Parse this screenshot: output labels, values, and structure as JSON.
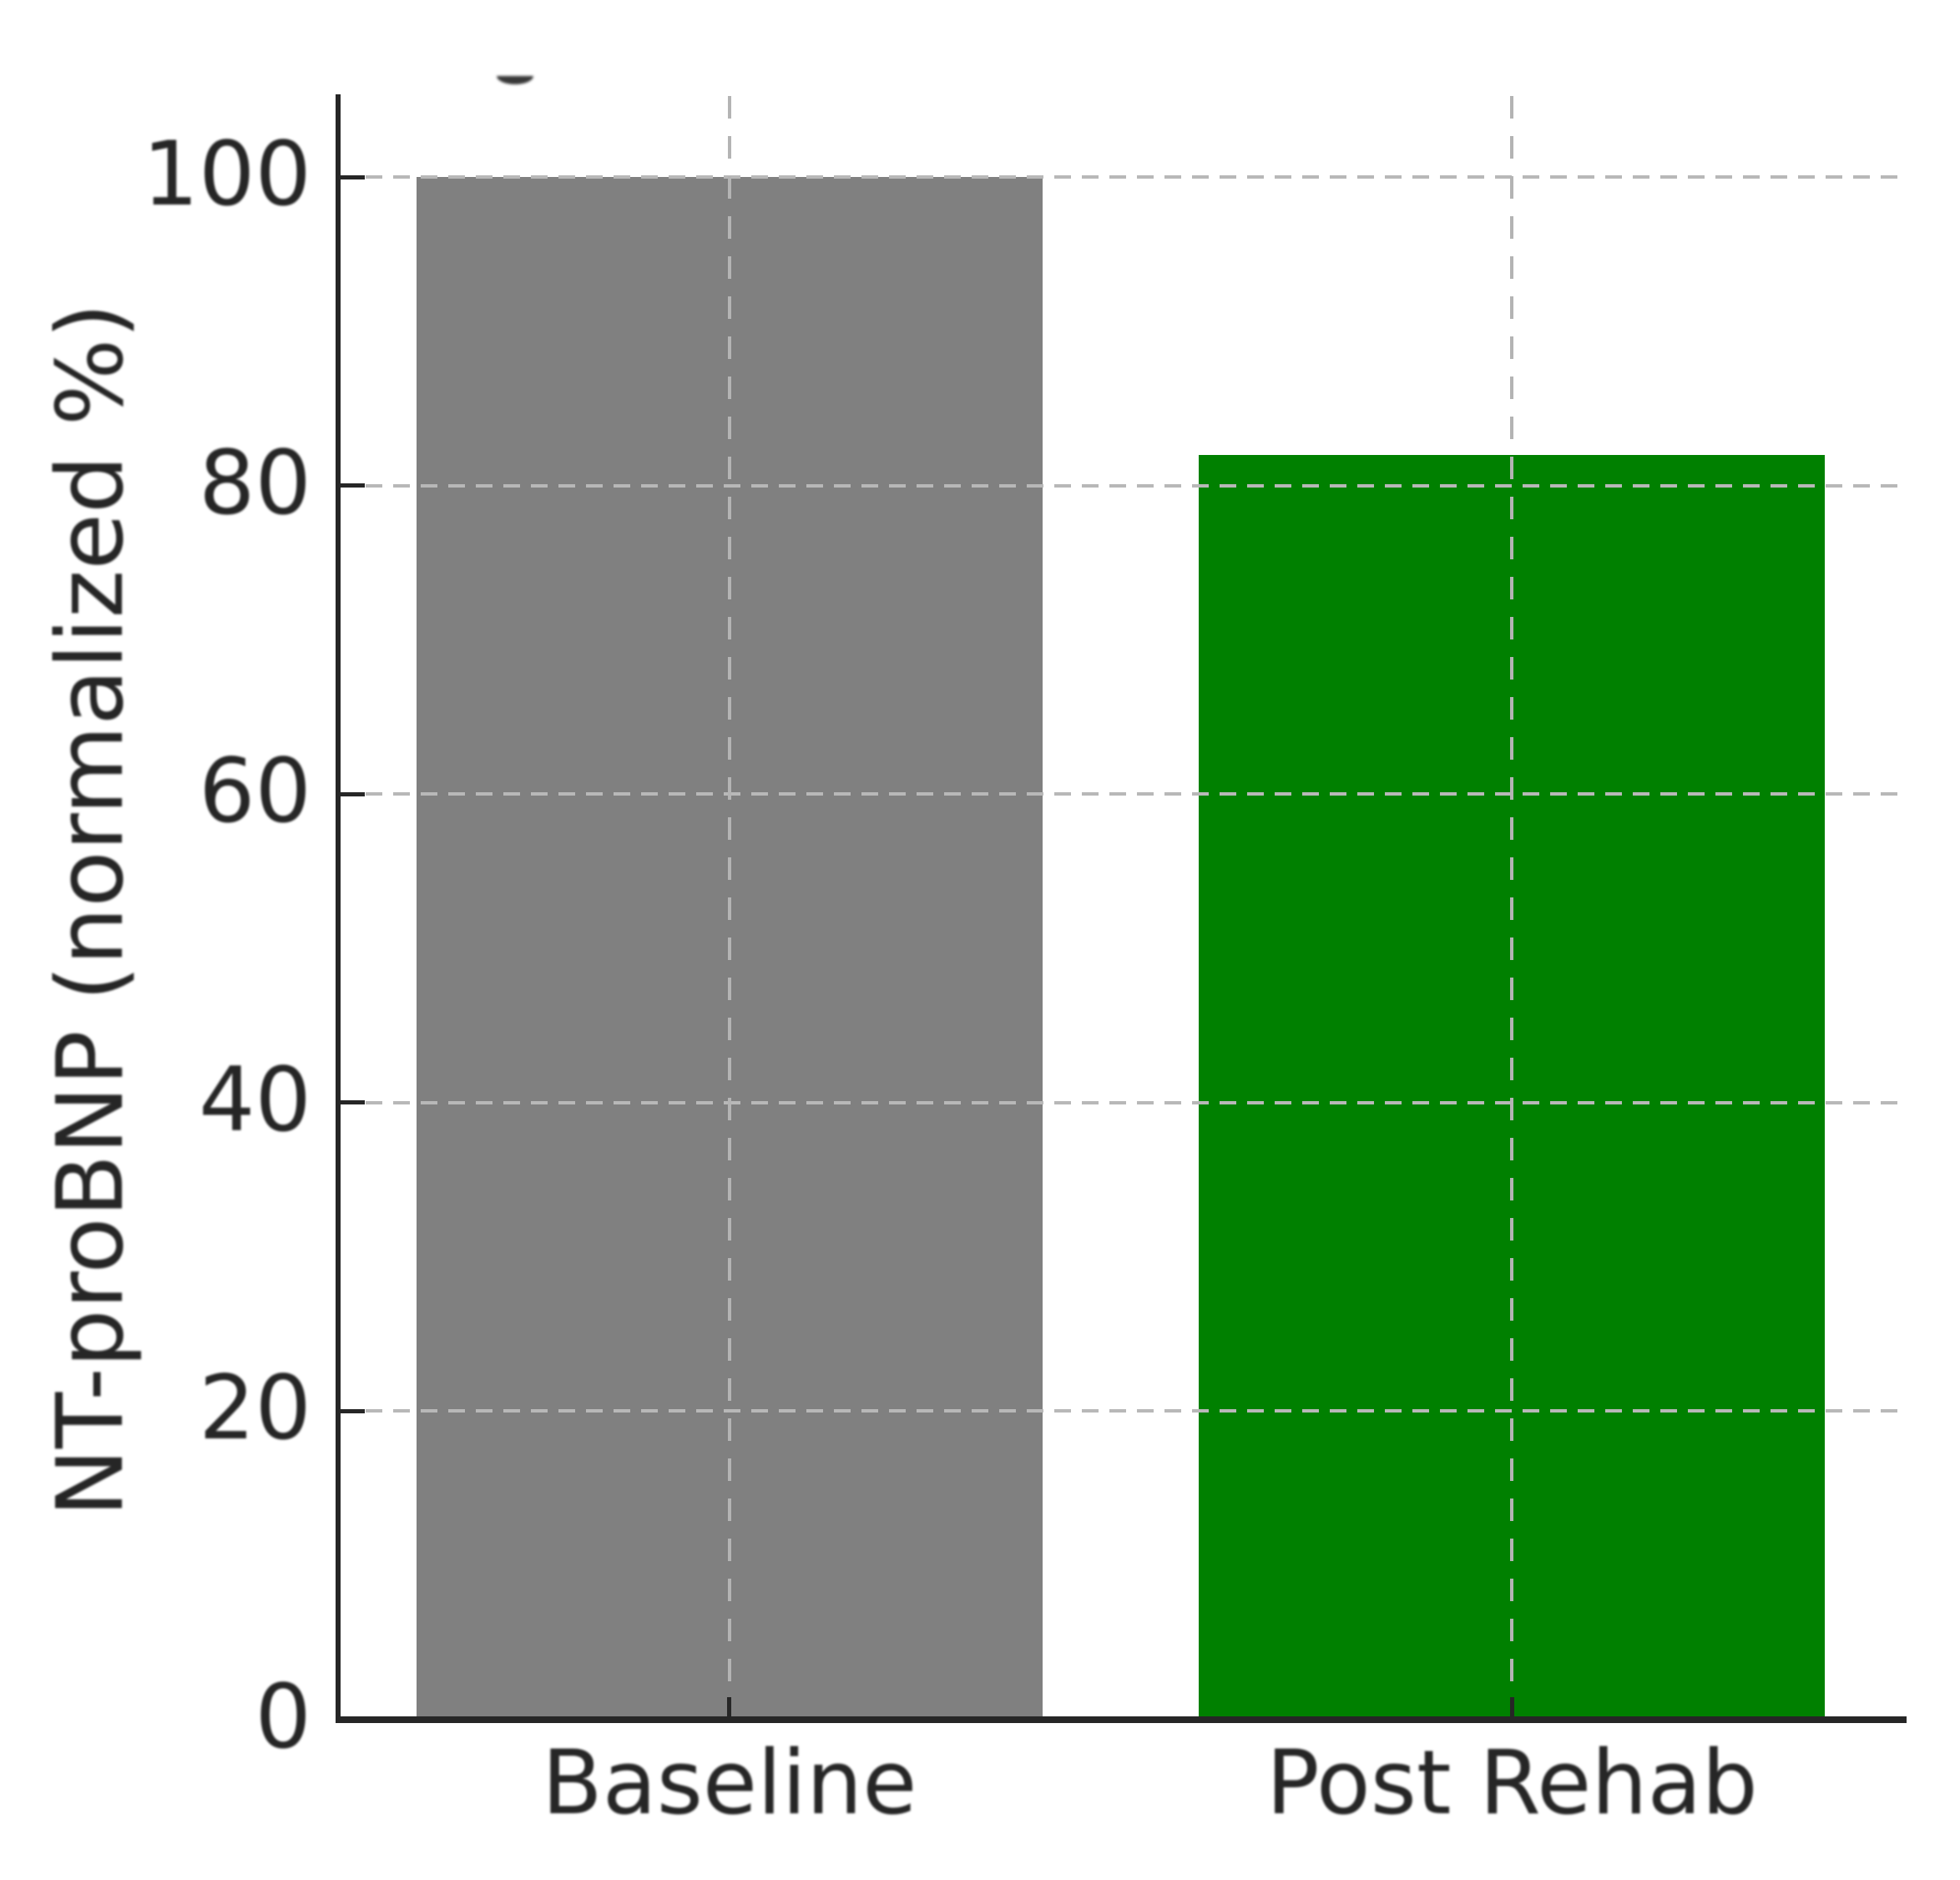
{
  "chart_data": {
    "type": "bar",
    "title": "",
    "categories": [
      "Baseline",
      "Post Rehab"
    ],
    "values": [
      100,
      82
    ],
    "bar_colors": [
      "#808080",
      "#008000"
    ],
    "xlabel": "",
    "ylabel": "NT-proBNP (normalized %)",
    "yticks": [
      0,
      20,
      40,
      60,
      80,
      100
    ],
    "ylim": [
      0,
      105
    ],
    "xlim": [
      -0.5,
      1.5
    ],
    "bar_width_fraction": 0.8,
    "grid": "dashed",
    "grid_on_top_of_bars": true,
    "tick_direction": "in",
    "grid_color": "#b8b8b8",
    "axis_color": "#262626",
    "text_color": "#262626",
    "background_color": "#ffffff"
  }
}
